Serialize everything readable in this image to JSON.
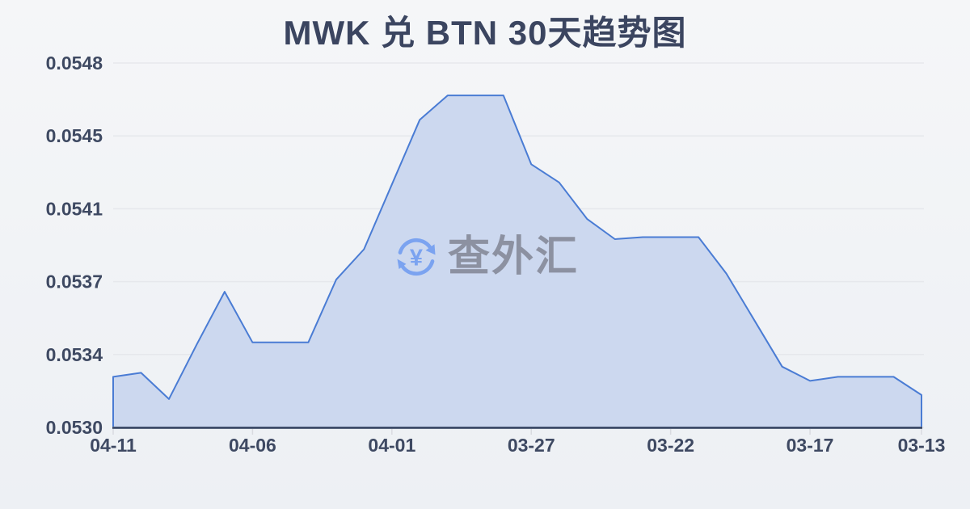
{
  "page": {
    "title": "MWK 兑 BTN 30天趋势图"
  },
  "watermark": {
    "icon": "currency-exchange-refresh-icon",
    "symbol": "¥",
    "text": "查外汇"
  },
  "colors": {
    "background_top": "#f5f6f8",
    "background_bottom": "#edf0f4",
    "title_text": "#3b4560",
    "axis_text": "#3e4962",
    "grid_line": "#e6e8ec",
    "axis_line": "#2f3e5c",
    "series_line": "#4a7cd4",
    "series_fill": "#ccd8ef",
    "tick_mark": "#d9dbe0",
    "watermark_text": "#8c91a1",
    "watermark_icon": "#7ba3f0"
  },
  "chart_data": {
    "type": "area",
    "title": "MWK 兑 BTN 30天趋势图",
    "x": [
      "04-11",
      "04-10",
      "04-09",
      "04-08",
      "04-07",
      "04-06",
      "04-05",
      "04-04",
      "04-03",
      "04-02",
      "04-01",
      "03-31",
      "03-30",
      "03-29",
      "03-28",
      "03-27",
      "03-26",
      "03-25",
      "03-24",
      "03-23",
      "03-22",
      "03-21",
      "03-20",
      "03-19",
      "03-18",
      "03-17",
      "03-16",
      "03-15",
      "03-14",
      "03-13"
    ],
    "values": [
      0.05325,
      0.05327,
      0.05314,
      0.05341,
      0.05367,
      0.05342,
      0.05342,
      0.05342,
      0.05373,
      0.05388,
      0.0542,
      0.05452,
      0.05464,
      0.05464,
      0.05464,
      0.0543,
      0.05421,
      0.05403,
      0.05393,
      0.05394,
      0.05394,
      0.05394,
      0.05376,
      0.05353,
      0.0533,
      0.05323,
      0.05325,
      0.05325,
      0.05325,
      0.05316
    ],
    "y_tick_labels": [
      "0.0548",
      "0.0545",
      "0.0541",
      "0.0537",
      "0.0534",
      "0.0530"
    ],
    "x_tick_labels": [
      "04-11",
      "04-06",
      "04-01",
      "03-27",
      "03-22",
      "03-17",
      "03-13"
    ],
    "x_tick_indices": [
      0,
      5,
      10,
      15,
      20,
      25,
      29
    ],
    "ylim": [
      0.053,
      0.0548
    ],
    "grid": true,
    "legend": "none",
    "x_order": "newest-to-oldest"
  }
}
